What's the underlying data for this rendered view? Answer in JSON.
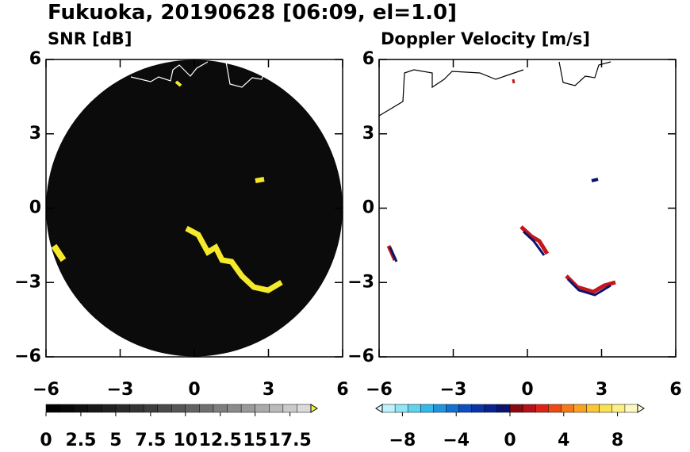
{
  "chart_data": [
    {
      "type": "radar",
      "title": "Fukuoka, 20190628 [06:09, el=1.0]",
      "subtitle": "SNR [dB]",
      "xlim": [
        -6,
        6
      ],
      "ylim": [
        -6,
        6
      ],
      "xticks": [
        {
          "value": -6,
          "label": "−6"
        },
        {
          "value": -3,
          "label": "−3"
        },
        0,
        3,
        6
      ],
      "yticks": [
        {
          "value": -6,
          "label": "−6"
        },
        {
          "value": -3,
          "label": "−3"
        },
        0,
        3,
        6
      ],
      "disc_color": "#0b0b0b",
      "clim": [
        0,
        19
      ],
      "cticks": [
        0,
        2.5,
        5,
        7.5,
        10,
        12.5,
        15,
        17.5
      ],
      "colors": [
        "#000000",
        "#080808",
        "#101010",
        "#181818",
        "#202020",
        "#2a2a2a",
        "#343434",
        "#3e3e3e",
        "#4a4a4a",
        "#565656",
        "#626262",
        "#707070",
        "#7e7e7e",
        "#8c8c8c",
        "#9a9a9a",
        "#aaaaaa",
        "#bababa",
        "#cacaca",
        "#dadada"
      ],
      "extend": "max",
      "extend_color": "#f5f03a"
    },
    {
      "type": "radar",
      "subtitle": "Doppler Velocity [m/s]",
      "xlim": [
        -6,
        6
      ],
      "ylim": [
        -6,
        6
      ],
      "xticks": [
        {
          "value": -6,
          "label": "−6"
        },
        {
          "value": -3,
          "label": "−3"
        },
        0,
        3,
        6
      ],
      "yticks": [
        {
          "value": -6,
          "label": "−6"
        },
        {
          "value": -3,
          "label": "−3"
        },
        0,
        3,
        6
      ],
      "clim": [
        -9.5,
        9.5
      ],
      "cticks": [
        {
          "value": -8,
          "label": "−8"
        },
        {
          "value": -4,
          "label": "−4"
        },
        0,
        4,
        8
      ],
      "colors": [
        "#bff3fb",
        "#8fe6f6",
        "#5fd3f0",
        "#35b8ea",
        "#1f95e0",
        "#1470d2",
        "#0d4fc0",
        "#0a34a8",
        "#0a2290",
        "#0a1470",
        "#8a0a14",
        "#b5121a",
        "#de2416",
        "#f04a14",
        "#f57a16",
        "#f8a321",
        "#fac536",
        "#fbe053",
        "#fcf083",
        "#fdf8c2"
      ],
      "extend": "both",
      "extend_colors": [
        "#d8fafd",
        "#fefde0"
      ]
    }
  ]
}
